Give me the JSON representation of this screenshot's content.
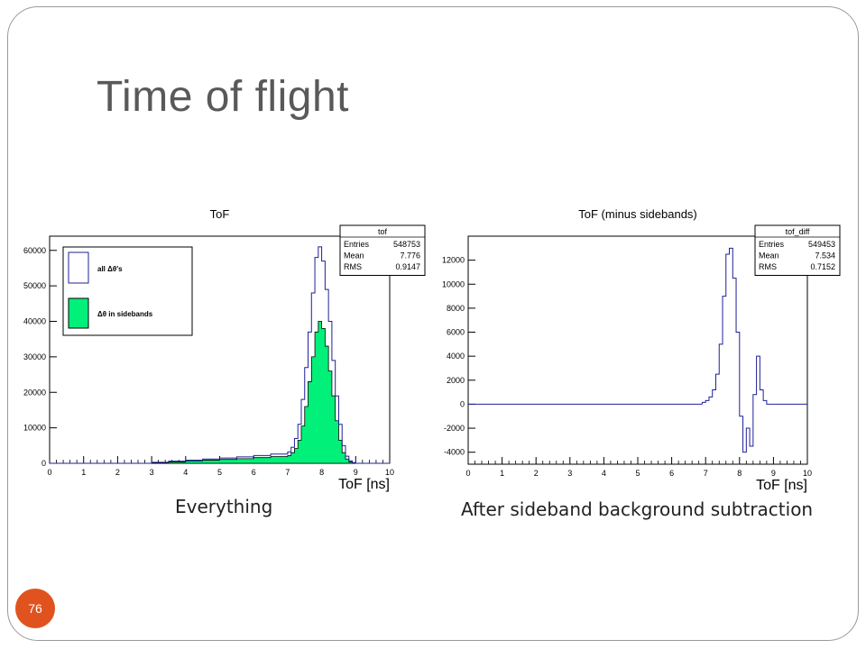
{
  "slide": {
    "title": "Time of flight",
    "page_number": "76",
    "caption_left": "Everything",
    "caption_right": "After sideband background subtraction"
  },
  "colors": {
    "hist_line": "#1f1f9a",
    "fill": "#00f07a",
    "badge": "#e0531f"
  },
  "chart_data": [
    {
      "type": "bar",
      "title": "ToF",
      "xlabel": "ToF [ns]",
      "ylabel": "",
      "xlim": [
        0,
        10
      ],
      "ylim": [
        0,
        64000
      ],
      "xticks": [
        "0",
        "1",
        "2",
        "3",
        "4",
        "5",
        "6",
        "7",
        "8",
        "9",
        "10"
      ],
      "yticks": [
        "0",
        "10000",
        "20000",
        "30000",
        "40000",
        "50000",
        "60000"
      ],
      "stats": {
        "name": "tof",
        "rows": [
          [
            "Entries",
            "548753"
          ],
          [
            "Mean",
            "7.776"
          ],
          [
            "RMS",
            "0.9147"
          ]
        ]
      },
      "legend": {
        "position": "top-left",
        "entries": [
          "all Δθ's",
          "Δθ in sidebands"
        ]
      },
      "bin_width": 0.1,
      "x": [
        3.0,
        3.5,
        4.0,
        4.5,
        5.0,
        5.5,
        6.0,
        6.5,
        7.0,
        7.1,
        7.2,
        7.3,
        7.4,
        7.5,
        7.6,
        7.7,
        7.8,
        7.9,
        8.0,
        8.1,
        8.2,
        8.3,
        8.4,
        8.5,
        8.6,
        8.7,
        8.8,
        8.9,
        9.0
      ],
      "series": [
        {
          "name": "all Δθ's",
          "values": [
            300,
            600,
            900,
            1200,
            1500,
            1800,
            2200,
            2600,
            3200,
            4500,
            7000,
            11000,
            18000,
            27000,
            37000,
            48000,
            58000,
            61000,
            57000,
            49000,
            40000,
            29000,
            19000,
            11000,
            5000,
            2000,
            700,
            200,
            0
          ]
        },
        {
          "name": "Δθ in sidebands",
          "values": [
            200,
            400,
            700,
            900,
            1100,
            1300,
            1600,
            1900,
            2200,
            3000,
            4200,
            6500,
            10500,
            16000,
            23000,
            30000,
            37000,
            40000,
            38000,
            33000,
            26000,
            19000,
            12000,
            6500,
            3000,
            1200,
            400,
            100,
            0
          ]
        }
      ]
    },
    {
      "type": "bar",
      "title": "ToF (minus sidebands)",
      "xlabel": "ToF [ns]",
      "ylabel": "",
      "xlim": [
        0,
        10
      ],
      "ylim": [
        -5000,
        14000
      ],
      "xticks": [
        "0",
        "1",
        "2",
        "3",
        "4",
        "5",
        "6",
        "7",
        "8",
        "9",
        "10"
      ],
      "yticks": [
        "-4000",
        "-2000",
        "0",
        "2000",
        "4000",
        "6000",
        "8000",
        "10000",
        "12000"
      ],
      "stats": {
        "name": "tof_diff",
        "rows": [
          [
            "Entries",
            "549453"
          ],
          [
            "Mean",
            "7.534"
          ],
          [
            "RMS",
            "0.7152"
          ]
        ]
      },
      "bin_width": 0.1,
      "x": [
        6.9,
        7.0,
        7.1,
        7.2,
        7.3,
        7.4,
        7.5,
        7.6,
        7.7,
        7.8,
        7.9,
        8.0,
        8.1,
        8.2,
        8.3,
        8.4,
        8.5,
        8.6,
        8.7,
        8.8
      ],
      "series": [
        {
          "name": "",
          "values": [
            150,
            300,
            600,
            1200,
            2500,
            5000,
            9000,
            12500,
            13000,
            10500,
            6000,
            -1000,
            -4000,
            -2000,
            -3500,
            800,
            4000,
            1200,
            300,
            0
          ]
        }
      ]
    }
  ]
}
